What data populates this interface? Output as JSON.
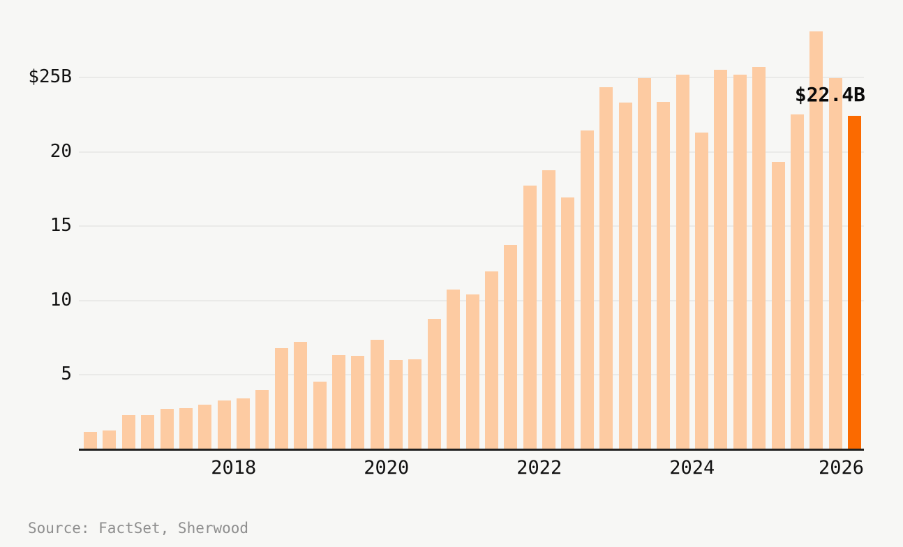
{
  "chart_data": {
    "type": "bar",
    "title": "",
    "unit": "$B",
    "x": [
      "2016Q1",
      "2016Q2",
      "2016Q3",
      "2016Q4",
      "2017Q1",
      "2017Q2",
      "2017Q3",
      "2017Q4",
      "2018Q1",
      "2018Q2",
      "2018Q3",
      "2018Q4",
      "2019Q1",
      "2019Q2",
      "2019Q3",
      "2019Q4",
      "2020Q1",
      "2020Q2",
      "2020Q3",
      "2020Q4",
      "2021Q1",
      "2021Q2",
      "2021Q3",
      "2021Q4",
      "2022Q1",
      "2022Q2",
      "2022Q3",
      "2022Q4",
      "2023Q1",
      "2023Q2",
      "2023Q3",
      "2023Q4",
      "2024Q1",
      "2024Q2",
      "2024Q3",
      "2024Q4",
      "2025Q1",
      "2025Q2",
      "2025Q3",
      "2025Q4",
      "2026Q1"
    ],
    "values": [
      1.15,
      1.27,
      2.3,
      2.28,
      2.7,
      2.79,
      2.98,
      3.29,
      3.41,
      4.0,
      6.82,
      7.23,
      4.54,
      6.35,
      6.3,
      7.38,
      5.99,
      6.04,
      8.77,
      10.74,
      10.39,
      11.96,
      13.76,
      17.72,
      18.76,
      16.93,
      21.45,
      24.32,
      23.33,
      24.93,
      23.35,
      25.17,
      21.3,
      25.5,
      25.18,
      25.71,
      19.34,
      22.5,
      28.1,
      24.93,
      22.4
    ],
    "highlight_index": 40,
    "annotation_label": "$22.4B",
    "y_ticks": [
      {
        "value": 25,
        "label": "$25B"
      },
      {
        "value": 20,
        "label": "20"
      },
      {
        "value": 15,
        "label": "15"
      },
      {
        "value": 10,
        "label": "10"
      },
      {
        "value": 5,
        "label": "5"
      }
    ],
    "x_ticks": [
      {
        "year": 2018,
        "label": "2018"
      },
      {
        "year": 2020,
        "label": "2020"
      },
      {
        "year": 2022,
        "label": "2022"
      },
      {
        "year": 2024,
        "label": "2024"
      },
      {
        "year": 2026,
        "label": "2026"
      }
    ],
    "ylim": [
      0,
      29
    ],
    "grid": true,
    "legend": false,
    "colors": {
      "bar": "#FDCBA2",
      "highlight": "#FB6A00",
      "axis": "#1F1F1F",
      "grid": "#EAEAE8",
      "tick_text": "#111111",
      "annotation_text": "#0A0A0A",
      "source_text": "#8E8E8E",
      "background": "#F7F7F5"
    }
  },
  "footer": {
    "source": "Source: FactSet, Sherwood"
  }
}
